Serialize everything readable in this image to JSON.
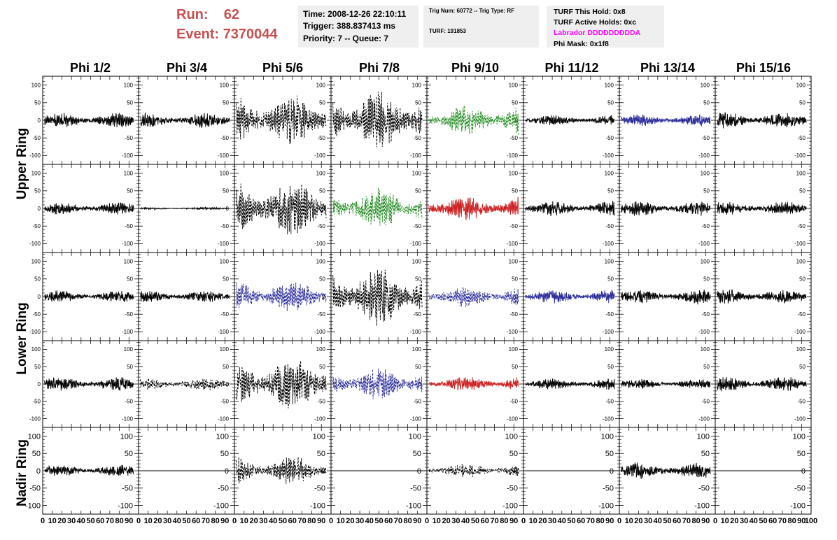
{
  "header": {
    "run_label": "Run:",
    "run_value": "62",
    "event_label": "Event:",
    "event_value": "7370044"
  },
  "time_box": {
    "time": "Time: 2008-12-26 22:10:11",
    "trigger": "Trigger: 388.837413 ms",
    "priority": "Priority: 7 -- Queue: 7"
  },
  "trig_box": {
    "trig": "Trig Num: 60772 -- Trig Type: RF",
    "turf": "TURF: 191853"
  },
  "turf_box": {
    "this_hold": "TURF This Hold: 0x8",
    "active_holds": "TURF Active Holds: 0xc",
    "labrador": "Labrador DDDDDDDDDA",
    "phi_mask": "Phi Mask: 0x1f8"
  },
  "columns": [
    "Phi 1/2",
    "Phi 3/4",
    "Phi 5/6",
    "Phi 7/8",
    "Phi 9/10",
    "Phi 11/12",
    "Phi 13/14",
    "Phi 15/16"
  ],
  "ring_labels": {
    "upper": "Upper Ring",
    "lower": "Lower Ring",
    "nadir": "Nadir Ring"
  },
  "colors": {
    "black": "#000000",
    "green": "#228b22",
    "blue": "#2b2b9a",
    "red": "#cc2020"
  },
  "chart_data": {
    "type": "line",
    "xlim": [
      0,
      100
    ],
    "ylim": [
      -125,
      125
    ],
    "yticks": [
      -100,
      -50,
      0,
      50,
      100
    ],
    "xticks": [
      0,
      10,
      20,
      30,
      40,
      50,
      60,
      70,
      80,
      90,
      100
    ],
    "xtick_labels": [
      "0",
      "10",
      "20",
      "30",
      "40",
      "50",
      "60",
      "70",
      "80",
      "90",
      "100"
    ],
    "ytick_labels": [
      "-100",
      "-50",
      "0",
      "50",
      "100"
    ],
    "rows": [
      {
        "ring": "upper",
        "cells": [
          {
            "amp": 18,
            "style": "solid",
            "color": "black"
          },
          {
            "amp": 18,
            "style": "solid",
            "color": "black"
          },
          {
            "amp": 60,
            "style": "dashed",
            "color": "black"
          },
          {
            "amp": 70,
            "style": "dashed",
            "color": "black"
          },
          {
            "amp": 38,
            "style": "dashed",
            "color": "green"
          },
          {
            "amp": 12,
            "style": "solid",
            "color": "black"
          },
          {
            "amp": 14,
            "style": "solid",
            "color": "blue"
          },
          {
            "amp": 20,
            "style": "solid",
            "color": "black"
          }
        ]
      },
      {
        "ring": "upper",
        "cells": [
          {
            "amp": 15,
            "style": "solid",
            "color": "black"
          },
          {
            "amp": 3,
            "style": "solid",
            "color": "black"
          },
          {
            "amp": 70,
            "style": "dashed",
            "color": "black"
          },
          {
            "amp": 50,
            "style": "dashed",
            "color": "green"
          },
          {
            "amp": 30,
            "style": "solid",
            "color": "red"
          },
          {
            "amp": 18,
            "style": "solid",
            "color": "black"
          },
          {
            "amp": 18,
            "style": "solid",
            "color": "black"
          },
          {
            "amp": 16,
            "style": "solid",
            "color": "black"
          }
        ]
      },
      {
        "ring": "lower",
        "cells": [
          {
            "amp": 14,
            "style": "solid",
            "color": "black"
          },
          {
            "amp": 14,
            "style": "solid",
            "color": "black"
          },
          {
            "amp": 40,
            "style": "dashed",
            "color": "blue"
          },
          {
            "amp": 70,
            "style": "dashed",
            "color": "black"
          },
          {
            "amp": 25,
            "style": "dashed",
            "color": "blue"
          },
          {
            "amp": 16,
            "style": "solid",
            "color": "blue"
          },
          {
            "amp": 18,
            "style": "solid",
            "color": "black"
          },
          {
            "amp": 18,
            "style": "solid",
            "color": "black"
          }
        ]
      },
      {
        "ring": "lower",
        "cells": [
          {
            "amp": 16,
            "style": "solid",
            "color": "black"
          },
          {
            "amp": 15,
            "style": "dashed",
            "color": "black"
          },
          {
            "amp": 65,
            "style": "dashed",
            "color": "black"
          },
          {
            "amp": 40,
            "style": "dashed",
            "color": "blue"
          },
          {
            "amp": 18,
            "style": "solid",
            "color": "red"
          },
          {
            "amp": 14,
            "style": "solid",
            "color": "black"
          },
          {
            "amp": 12,
            "style": "solid",
            "color": "black"
          },
          {
            "amp": 18,
            "style": "solid",
            "color": "black"
          }
        ]
      },
      {
        "ring": "nadir",
        "cells": [
          {
            "amp": 14,
            "style": "solid",
            "color": "black"
          },
          {
            "amp": 0,
            "style": "solid",
            "color": "black"
          },
          {
            "amp": 35,
            "style": "dashed",
            "color": "black"
          },
          {
            "amp": 0,
            "style": "solid",
            "color": "black"
          },
          {
            "amp": 16,
            "style": "dashed",
            "color": "black"
          },
          {
            "amp": 0,
            "style": "solid",
            "color": "black"
          },
          {
            "amp": 20,
            "style": "solid",
            "color": "black"
          },
          {
            "amp": 0,
            "style": "solid",
            "color": "black"
          }
        ]
      }
    ]
  }
}
